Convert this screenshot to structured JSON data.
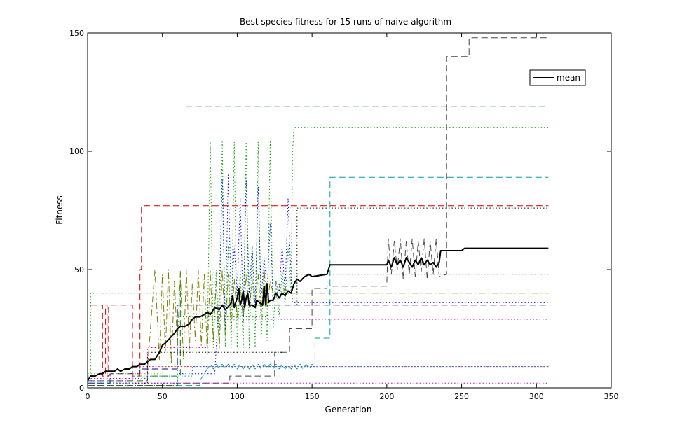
{
  "chart_data": {
    "type": "line",
    "title": "Best species fitness for 15 runs of naive algorithm",
    "xlabel": "Generation",
    "ylabel": "Fitness",
    "xlim": [
      0,
      350
    ],
    "ylim": [
      0,
      150
    ],
    "xticks": [
      "0",
      "50",
      "100",
      "150",
      "200",
      "250",
      "300",
      "350"
    ],
    "yticks": [
      "0",
      "50",
      "100",
      "150"
    ],
    "grid": false,
    "legend": {
      "position": "top-right",
      "entries": [
        "mean"
      ]
    },
    "series": [
      {
        "name": "mean",
        "color": "#000000",
        "dash": "solid",
        "width": 2,
        "x": [
          0,
          2,
          5,
          8,
          10,
          12,
          15,
          18,
          20,
          22,
          25,
          28,
          30,
          33,
          35,
          38,
          40,
          42,
          45,
          48,
          50,
          52,
          55,
          58,
          60,
          62,
          65,
          68,
          70,
          72,
          75,
          78,
          80,
          82,
          85,
          88,
          90,
          92,
          95,
          96,
          97,
          98,
          100,
          101,
          102,
          103,
          104,
          105,
          106,
          107,
          108,
          110,
          112,
          113,
          115,
          117,
          118,
          119,
          120,
          121,
          122,
          124,
          126,
          128,
          130,
          132,
          134,
          136,
          138,
          140,
          142,
          145,
          148,
          150,
          160,
          162,
          170,
          200,
          201,
          203,
          205,
          207,
          209,
          211,
          213,
          215,
          217,
          219,
          221,
          223,
          225,
          227,
          229,
          231,
          233,
          235,
          236,
          238,
          250,
          252,
          255,
          260,
          300,
          308
        ],
        "y": [
          3,
          5,
          5,
          6,
          6,
          7,
          7,
          7,
          8,
          7,
          8,
          8,
          9,
          9,
          10,
          10,
          11,
          12,
          12,
          15,
          18,
          19,
          21,
          23,
          25,
          26,
          26,
          27,
          29,
          30,
          30,
          31,
          32,
          31,
          34,
          33,
          35,
          33,
          35,
          36,
          39,
          34,
          38,
          42,
          35,
          37,
          41,
          34,
          38,
          40,
          35,
          35,
          34,
          37,
          36,
          35,
          43,
          35,
          44,
          36,
          37,
          37,
          40,
          38,
          40,
          39,
          41,
          40,
          44,
          46,
          45,
          47,
          48,
          47,
          48,
          52,
          52,
          52,
          54,
          51,
          55,
          52,
          54,
          51,
          55,
          53,
          51,
          54,
          52,
          55,
          52,
          54,
          52,
          53,
          51,
          53,
          58,
          58,
          58,
          59,
          59,
          59,
          59,
          59
        ]
      },
      {
        "color": "#000080",
        "dash": "dash",
        "width": 1,
        "x": [
          0,
          15,
          15,
          35,
          35,
          60,
          60,
          308
        ],
        "y": [
          2,
          2,
          6,
          6,
          8,
          8,
          35,
          35
        ]
      },
      {
        "color": "#cc0000",
        "dash": "dash",
        "width": 1,
        "x": [
          2,
          10,
          10,
          12,
          12,
          13,
          13,
          14,
          14,
          30,
          30,
          35,
          35,
          36,
          36,
          308
        ],
        "y": [
          35,
          35,
          5,
          5,
          35,
          35,
          5,
          5,
          35,
          35,
          5,
          5,
          50,
          50,
          77,
          77
        ]
      },
      {
        "color": "#008000",
        "dash": "dash",
        "width": 1,
        "x": [
          0,
          40,
          40,
          62,
          62,
          63,
          63,
          308
        ],
        "y": [
          3,
          3,
          5,
          5,
          50,
          50,
          119,
          119
        ]
      },
      {
        "color": "#00a0a0",
        "dash": "dash",
        "width": 1,
        "x": [
          0,
          75,
          75,
          80,
          82,
          84,
          86,
          88,
          90,
          92,
          94,
          96,
          98,
          100,
          102,
          104,
          106,
          108,
          110,
          112,
          114,
          116,
          118,
          120,
          122,
          124,
          126,
          128,
          130,
          132,
          134,
          136,
          138,
          140,
          142,
          144,
          146,
          148,
          150,
          152,
          152,
          162,
          162,
          308
        ],
        "y": [
          1,
          1,
          3,
          8,
          10,
          8,
          10,
          8,
          10,
          8,
          10,
          8,
          10,
          8,
          10,
          8,
          10,
          8,
          10,
          8,
          10,
          8,
          10,
          8,
          10,
          8,
          10,
          8,
          10,
          8,
          10,
          8,
          10,
          8,
          10,
          8,
          10,
          8,
          10,
          8,
          21,
          21,
          89,
          89
        ]
      },
      {
        "color": "#808000",
        "dash": "dashdot",
        "width": 1,
        "x": [
          40,
          45,
          48,
          50,
          52,
          54,
          56,
          58,
          60,
          62,
          64,
          66,
          68,
          70,
          72,
          74,
          76,
          78,
          80,
          82,
          84,
          86,
          88,
          90,
          92,
          94,
          96,
          98,
          100,
          102,
          104,
          106,
          108,
          110,
          112,
          114,
          116,
          118,
          120,
          122,
          124,
          126,
          128,
          130,
          132,
          134,
          140,
          308
        ],
        "y": [
          8,
          50,
          12,
          48,
          15,
          50,
          10,
          45,
          18,
          48,
          12,
          50,
          16,
          44,
          20,
          50,
          18,
          48,
          14,
          50,
          20,
          45,
          16,
          50,
          22,
          48,
          25,
          46,
          30,
          44,
          28,
          48,
          34,
          45,
          36,
          48,
          30,
          50,
          34,
          45,
          40,
          38,
          44,
          40,
          42,
          40,
          40,
          40
        ]
      },
      {
        "color": "#444444",
        "dash": "dash",
        "width": 1,
        "x": [
          0,
          60,
          60,
          95,
          95,
          125,
          125,
          135,
          135,
          150,
          150,
          160,
          160,
          200,
          200,
          201,
          203,
          205,
          207,
          209,
          211,
          213,
          215,
          217,
          219,
          221,
          223,
          225,
          227,
          229,
          231,
          233,
          235,
          235,
          240,
          240,
          250,
          250,
          255,
          255,
          308
        ],
        "y": [
          1,
          1,
          2,
          2,
          5,
          5,
          15,
          15,
          25,
          25,
          42,
          42,
          43,
          43,
          45,
          63,
          48,
          62,
          50,
          63,
          46,
          62,
          48,
          63,
          47,
          62,
          49,
          63,
          46,
          62,
          48,
          63,
          47,
          47,
          48,
          140,
          140,
          140,
          140,
          148,
          148
        ]
      },
      {
        "color": "#0000ff",
        "dash": "dot",
        "width": 1,
        "x": [
          0,
          60,
          60,
          85,
          88,
          90,
          92,
          94,
          96,
          98,
          100,
          102,
          104,
          106,
          108,
          110,
          112,
          114,
          116,
          118,
          120,
          122,
          124,
          126,
          128,
          130,
          132,
          134,
          136,
          137,
          138,
          308
        ],
        "y": [
          2,
          2,
          6,
          6,
          40,
          88,
          25,
          90,
          35,
          60,
          40,
          80,
          30,
          88,
          40,
          60,
          35,
          85,
          38,
          55,
          40,
          70,
          36,
          45,
          40,
          60,
          40,
          80,
          45,
          36,
          36,
          36
        ]
      },
      {
        "color": "#cc00cc",
        "dash": "dot",
        "width": 1,
        "x": [
          0,
          20,
          20,
          60,
          60,
          100,
          100,
          308
        ],
        "y": [
          1,
          1,
          2,
          2,
          2,
          2,
          2,
          2
        ]
      },
      {
        "color": "#cc00cc",
        "dash": "dot",
        "width": 1,
        "x": [
          0,
          30,
          30,
          90,
          90,
          140,
          140,
          308
        ],
        "y": [
          3,
          3,
          9,
          9,
          9,
          9,
          9,
          9
        ]
      },
      {
        "color": "#cc00cc",
        "dash": "dot",
        "width": 1,
        "x": [
          0,
          40,
          40,
          80,
          80,
          308
        ],
        "y": [
          4,
          4,
          17,
          17,
          29,
          29
        ]
      },
      {
        "color": "#00a000",
        "dash": "dot",
        "width": 1,
        "x": [
          0,
          2,
          2,
          80,
          80,
          82,
          84,
          86,
          88,
          90,
          92,
          94,
          96,
          98,
          100,
          102,
          104,
          106,
          108,
          110,
          112,
          114,
          116,
          118,
          120,
          122,
          124,
          126,
          128,
          130,
          132,
          134,
          136,
          137,
          138,
          308
        ],
        "y": [
          5,
          5,
          40,
          40,
          17,
          104,
          17,
          50,
          17,
          104,
          17,
          60,
          17,
          104,
          17,
          50,
          17,
          104,
          17,
          60,
          17,
          104,
          20,
          50,
          20,
          104,
          25,
          45,
          30,
          50,
          35,
          60,
          40,
          100,
          110,
          110
        ]
      },
      {
        "color": "#008000",
        "dash": "dot",
        "width": 1,
        "x": [
          0,
          60,
          60,
          120,
          120,
          140,
          140,
          308
        ],
        "y": [
          1,
          1,
          30,
          30,
          35,
          35,
          48,
          48
        ]
      },
      {
        "color": "#999900",
        "dash": "dot",
        "width": 1,
        "x": [
          0,
          50,
          50,
          100,
          100,
          308
        ],
        "y": [
          6,
          6,
          9,
          9,
          9,
          9
        ]
      },
      {
        "color": "#000000",
        "dash": "dot",
        "width": 1,
        "x": [
          0,
          40,
          40,
          130,
          130,
          140,
          140,
          308
        ],
        "y": [
          2,
          2,
          15,
          15,
          40,
          40,
          76,
          76
        ]
      },
      {
        "color": "#00a0a0",
        "dash": "dot",
        "width": 1,
        "x": [
          0,
          30,
          30,
          70,
          70,
          308
        ],
        "y": [
          2,
          2,
          5,
          5,
          9,
          9
        ]
      }
    ]
  }
}
